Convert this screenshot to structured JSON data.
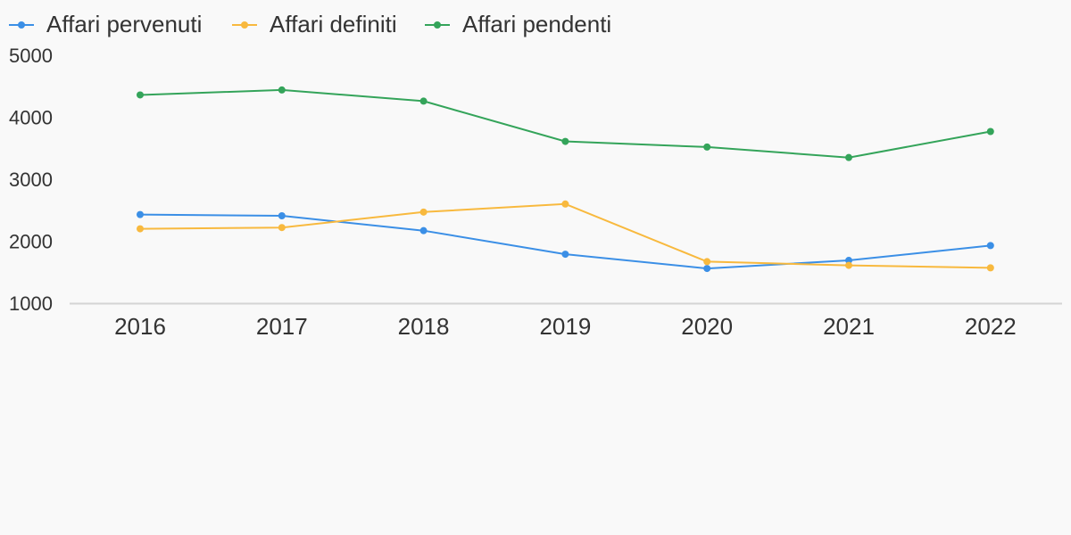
{
  "chart_data": {
    "type": "line",
    "categories": [
      "2016",
      "2017",
      "2018",
      "2019",
      "2020",
      "2021",
      "2022"
    ],
    "series": [
      {
        "name": "Affari pervenuti",
        "color": "#3b8fe6",
        "values": [
          2430,
          2410,
          2170,
          1790,
          1560,
          1690,
          1930
        ]
      },
      {
        "name": "Affari definiti",
        "color": "#f8b93e",
        "values": [
          2200,
          2220,
          2470,
          2600,
          1670,
          1610,
          1570
        ]
      },
      {
        "name": "Affari pendenti",
        "color": "#34a45a",
        "values": [
          4360,
          4440,
          4260,
          3610,
          3520,
          3350,
          3770
        ]
      }
    ],
    "yticks": [
      "1000",
      "2000",
      "3000",
      "4000",
      "5000"
    ],
    "ylim": [
      1000,
      5000
    ],
    "grid": false,
    "legend": "top-left",
    "title": "",
    "xlabel": "",
    "ylabel": ""
  }
}
